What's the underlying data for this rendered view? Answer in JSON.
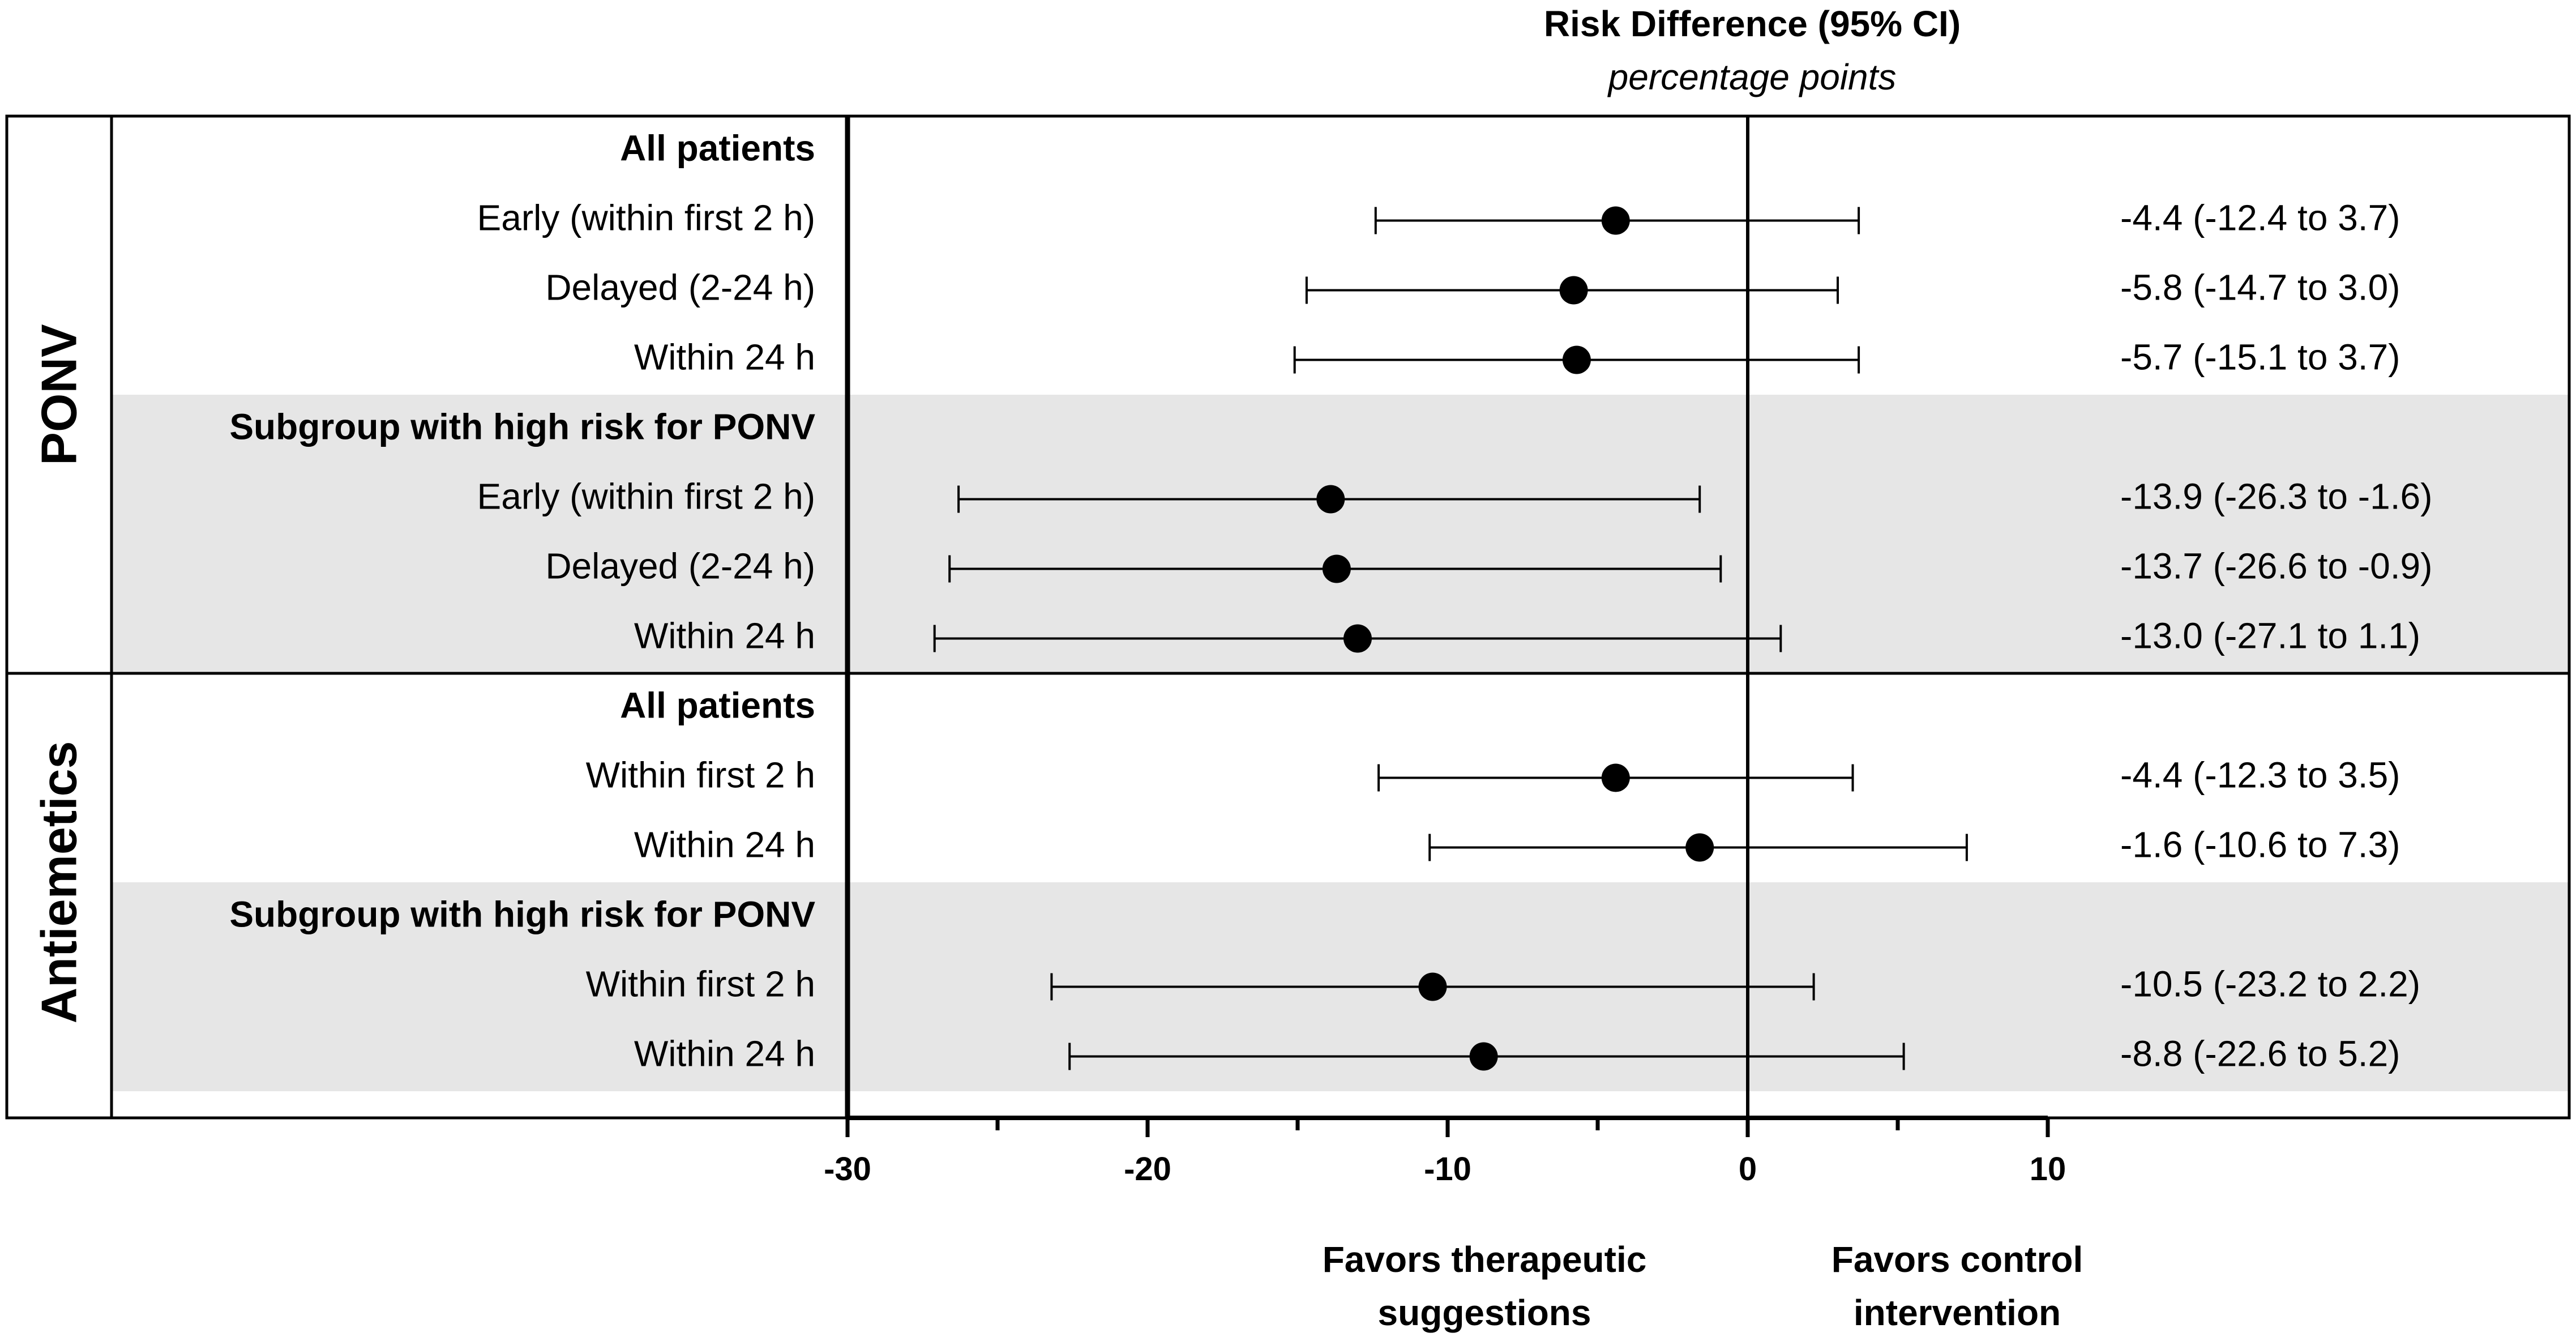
{
  "header": {
    "title": "Risk Difference (95% CI)",
    "subtitle": "percentage points"
  },
  "favors": {
    "left_line1": "Favors therapeutic",
    "left_line2": "suggestions",
    "right_line1": "Favors control",
    "right_line2": "intervention"
  },
  "colors": {
    "shade": "#e6e6e6",
    "ink": "#000000"
  },
  "chart_data": {
    "type": "forest",
    "title": "Risk Difference (95% CI)",
    "xlabel": "percentage points",
    "xlim": [
      -30,
      10
    ],
    "major_ticks": [
      -30,
      -20,
      -10,
      0,
      10
    ],
    "minor_ticks": [
      -25,
      -15,
      -5,
      5
    ],
    "reference_line": 0,
    "sections": [
      {
        "name": "PONV",
        "groups": [
          {
            "title": "All patients",
            "shaded": false,
            "rows": [
              {
                "label": "Early (within first 2 h)",
                "estimate": -4.4,
                "lower": -12.4,
                "upper": 3.7,
                "text": "-4.4 (-12.4 to 3.7)"
              },
              {
                "label": "Delayed (2-24 h)",
                "estimate": -5.8,
                "lower": -14.7,
                "upper": 3.0,
                "text": "-5.8 (-14.7 to 3.0)"
              },
              {
                "label": "Within 24 h",
                "estimate": -5.7,
                "lower": -15.1,
                "upper": 3.7,
                "text": "-5.7 (-15.1 to 3.7)"
              }
            ]
          },
          {
            "title": "Subgroup with high risk for PONV",
            "shaded": true,
            "rows": [
              {
                "label": "Early (within first 2 h)",
                "estimate": -13.9,
                "lower": -26.3,
                "upper": -1.6,
                "text": "-13.9 (-26.3 to -1.6)"
              },
              {
                "label": "Delayed (2-24 h)",
                "estimate": -13.7,
                "lower": -26.6,
                "upper": -0.9,
                "text": "-13.7 (-26.6 to -0.9)"
              },
              {
                "label": "Within 24 h",
                "estimate": -13.0,
                "lower": -27.1,
                "upper": 1.1,
                "text": "-13.0 (-27.1 to 1.1)"
              }
            ]
          }
        ]
      },
      {
        "name": "Antiemetics",
        "groups": [
          {
            "title": "All patients",
            "shaded": false,
            "rows": [
              {
                "label": "Within first 2 h",
                "estimate": -4.4,
                "lower": -12.3,
                "upper": 3.5,
                "text": "-4.4 (-12.3 to 3.5)"
              },
              {
                "label": "Within 24 h",
                "estimate": -1.6,
                "lower": -10.6,
                "upper": 7.3,
                "text": "-1.6 (-10.6 to 7.3)"
              }
            ]
          },
          {
            "title": "Subgroup with high risk for PONV",
            "shaded": true,
            "rows": [
              {
                "label": "Within first 2 h",
                "estimate": -10.5,
                "lower": -23.2,
                "upper": 2.2,
                "text": "-10.5 (-23.2 to 2.2)"
              },
              {
                "label": "Within 24 h",
                "estimate": -8.8,
                "lower": -22.6,
                "upper": 5.2,
                "text": "-8.8 (-22.6 to 5.2)"
              }
            ]
          }
        ]
      }
    ]
  }
}
